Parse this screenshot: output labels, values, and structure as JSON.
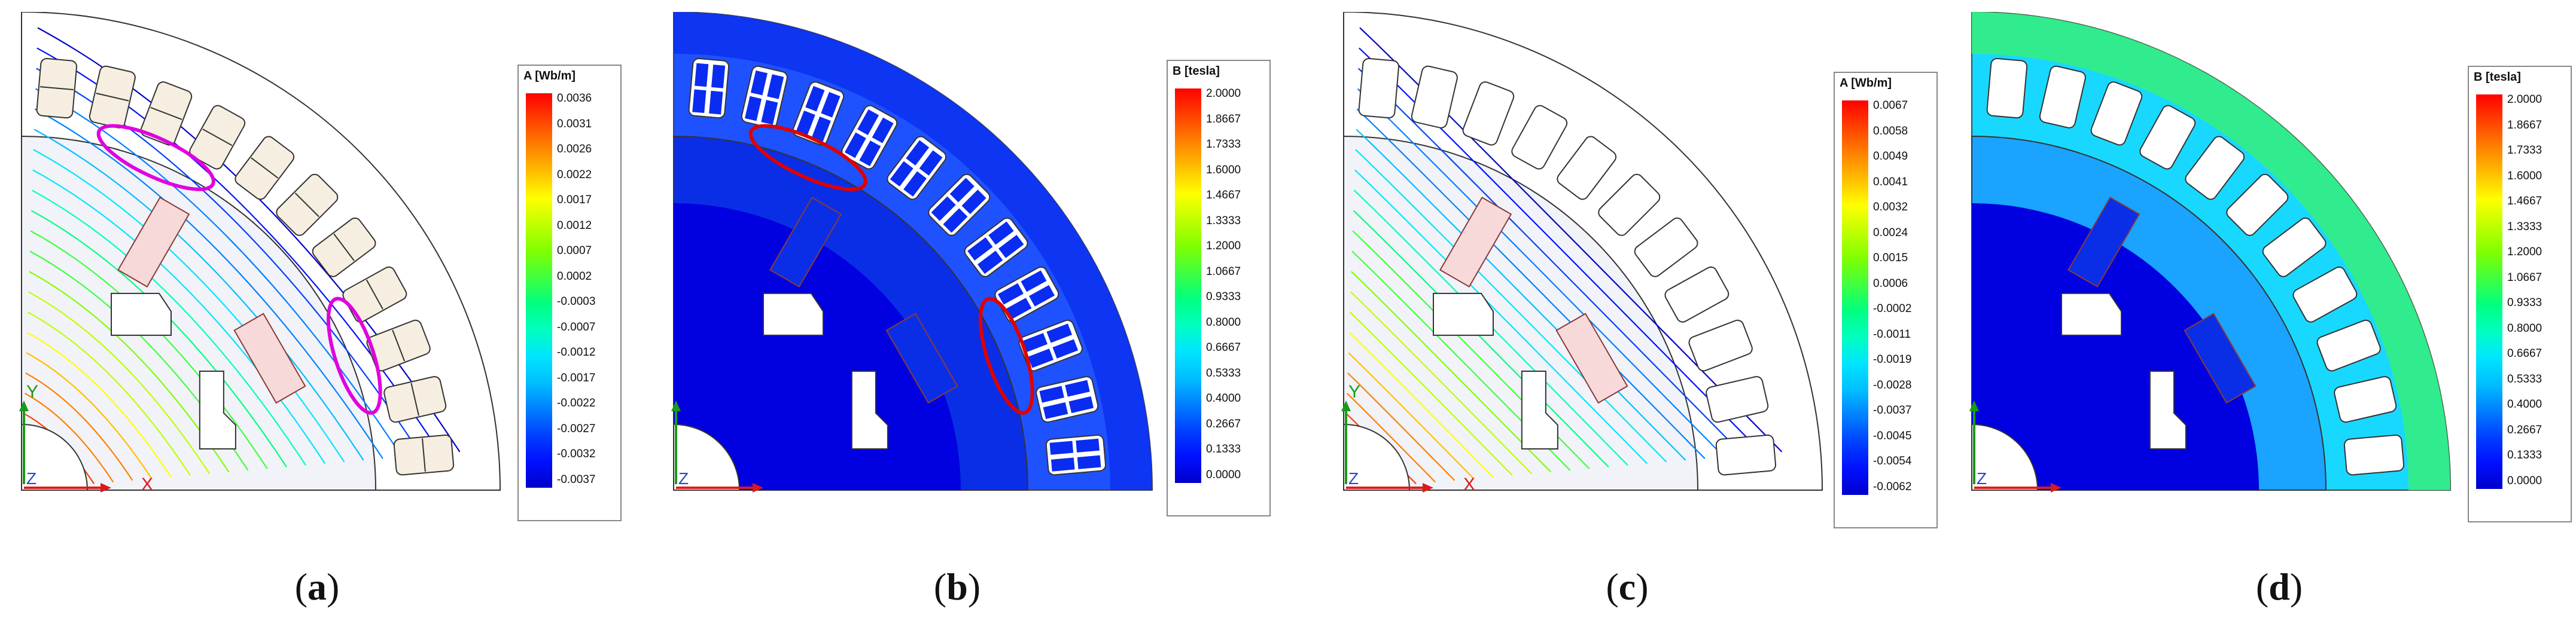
{
  "panels": [
    {
      "id": "a",
      "caption_letter": "a",
      "legend_title": "A [Wb/m]",
      "ticks": [
        "0.0036",
        "0.0031",
        "0.0026",
        "0.0022",
        "0.0017",
        "0.0012",
        "0.0007",
        "0.0002",
        "-0.0003",
        "-0.0007",
        "-0.0012",
        "-0.0017",
        "-0.0022",
        "-0.0027",
        "-0.0032",
        "-0.0037"
      ],
      "plot_kind": "flux-lines",
      "axis_y": "Y",
      "axis_x": "X",
      "axis_z": "Z"
    },
    {
      "id": "b",
      "caption_letter": "b",
      "legend_title": "B [tesla]",
      "ticks": [
        "2.0000",
        "1.8667",
        "1.7333",
        "1.6000",
        "1.4667",
        "1.3333",
        "1.2000",
        "1.0667",
        "0.9333",
        "0.8000",
        "0.6667",
        "0.5333",
        "0.4000",
        "0.2667",
        "0.1333",
        "0.0000"
      ],
      "plot_kind": "flux-density",
      "axis_z": "Z"
    },
    {
      "id": "c",
      "caption_letter": "c",
      "legend_title": "A [Wb/m]",
      "ticks": [
        "0.0067",
        "0.0058",
        "0.0049",
        "0.0041",
        "0.0032",
        "0.0024",
        "0.0015",
        "0.0006",
        "-0.0002",
        "-0.0011",
        "-0.0019",
        "-0.0028",
        "-0.0037",
        "-0.0045",
        "-0.0054",
        "-0.0062"
      ],
      "plot_kind": "flux-lines",
      "axis_y": "Y",
      "axis_x": "X",
      "axis_z": "Z"
    },
    {
      "id": "d",
      "caption_letter": "d",
      "legend_title": "B [tesla]",
      "ticks": [
        "2.0000",
        "1.8667",
        "1.7333",
        "1.6000",
        "1.4667",
        "1.3333",
        "1.2000",
        "1.0667",
        "0.9333",
        "0.8000",
        "0.6667",
        "0.5333",
        "0.4000",
        "0.2667",
        "0.1333",
        "0.0000"
      ],
      "plot_kind": "flux-density",
      "axis_z": "Z"
    }
  ],
  "colors": {
    "scale": [
      "#ff0000",
      "#ff4000",
      "#ff8000",
      "#ffbf00",
      "#ffff00",
      "#bfff00",
      "#80ff00",
      "#40ff40",
      "#00ff80",
      "#00ffbf",
      "#00e5ff",
      "#00bfff",
      "#0080ff",
      "#0040ff",
      "#0010ff",
      "#0000cc"
    ],
    "highlight_a": "#e000e0",
    "highlight_b": "#e00000",
    "rotor_fill": "#f1f3f8",
    "magnet_fill": "#f7d9d9",
    "coil_fill": "#f6eee0"
  }
}
